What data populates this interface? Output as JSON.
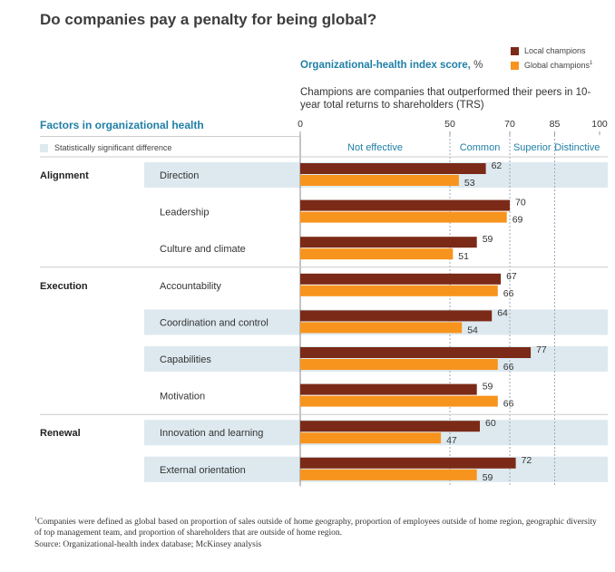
{
  "title": "Do companies pay a penalty for being global?",
  "index_heading": {
    "strong": "Organizational-health index score,",
    "unit": " %"
  },
  "champions_note": "Champions are companies that outperformed their peers in 10-year total returns to shareholders (TRS)",
  "factors_heading": "Factors in organizational health",
  "significance_legend": "Statistically significant difference",
  "legend": {
    "local": "Local champions",
    "global": "Global champions",
    "global_sup": "1"
  },
  "colors": {
    "local": "#7b2a17",
    "global": "#f7941d",
    "highlight": "#dde9ef",
    "accent": "#1f7fa6"
  },
  "footnote": {
    "mark": "1",
    "text": "Companies were defined as global based on proportion of sales outside of home geography, proportion of employees outside of home region, geographic diversity of top management team, and proportion of shareholders that are outside of home region."
  },
  "source": "Source: Organizational-health index database; McKinsey analysis",
  "chart_data": {
    "type": "bar",
    "orientation": "horizontal",
    "xlim": [
      0,
      100
    ],
    "ticks": [
      0,
      50,
      70,
      85,
      100
    ],
    "bands": [
      {
        "label": "Not effective",
        "from": 0,
        "to": 50
      },
      {
        "label": "Common",
        "from": 50,
        "to": 70
      },
      {
        "label": "Superior",
        "from": 70,
        "to": 85
      },
      {
        "label": "Distinctive",
        "from": 85,
        "to": 100
      }
    ],
    "groups": [
      {
        "name": "Alignment",
        "start": 0
      },
      {
        "name": "Execution",
        "start": 3
      },
      {
        "name": "Renewal",
        "start": 7
      }
    ],
    "categories": [
      "Direction",
      "Leadership",
      "Culture and climate",
      "Accountability",
      "Coordination and control",
      "Capabilities",
      "Motivation",
      "Innovation and learning",
      "External orientation"
    ],
    "significant": [
      true,
      false,
      false,
      false,
      true,
      true,
      false,
      true,
      true
    ],
    "series": [
      {
        "name": "Local champions",
        "values": [
          62,
          70,
          59,
          67,
          64,
          77,
          59,
          60,
          72
        ]
      },
      {
        "name": "Global champions",
        "values": [
          53,
          69,
          51,
          66,
          54,
          66,
          66,
          47,
          59
        ]
      }
    ]
  }
}
